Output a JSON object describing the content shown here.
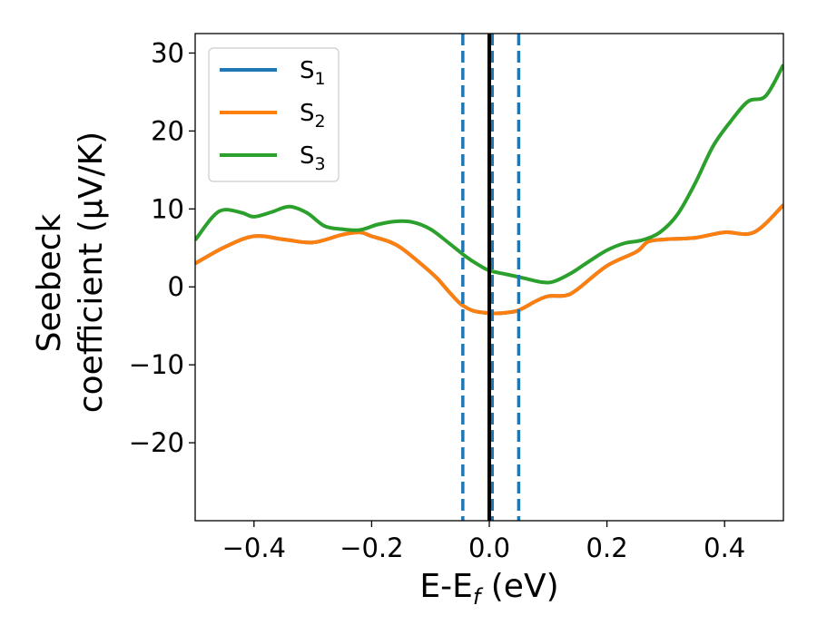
{
  "chart_data": {
    "type": "line",
    "xlabel": {
      "main": "E-E",
      "sub": "f",
      "unit": " (eV)"
    },
    "ylabel": {
      "line1": "Seebeck",
      "line2": "coefficient  (μV/K)"
    },
    "xlim": [
      -0.5,
      0.5
    ],
    "ylim": [
      -30,
      32.5
    ],
    "xticks": [
      -0.4,
      -0.2,
      0.0,
      0.2,
      0.4
    ],
    "xtick_labels": [
      "−0.4",
      "−0.2",
      "0.0",
      "0.2",
      "0.4"
    ],
    "yticks": [
      -20,
      -10,
      0,
      10,
      20,
      30
    ],
    "ytick_labels": [
      "−20",
      "−10",
      "0",
      "10",
      "20",
      "30"
    ],
    "grid": false,
    "legend": "top-left",
    "vlines": [
      {
        "x": -0.045,
        "style": "dashed",
        "color": "#1f77b4"
      },
      {
        "x": 0.005,
        "style": "dashed",
        "color": "#1f77b4"
      },
      {
        "x": 0.05,
        "style": "dashed",
        "color": "#1f77b4"
      },
      {
        "x": 0.0,
        "style": "solid",
        "color": "#000000"
      }
    ],
    "series": [
      {
        "name": "S",
        "sub": "1",
        "color": "#1f77b4",
        "points": [
          [
            -0.5,
            3.0
          ],
          [
            -0.45,
            5.1
          ],
          [
            -0.4,
            6.5
          ],
          [
            -0.35,
            6.1
          ],
          [
            -0.3,
            5.7
          ],
          [
            -0.25,
            6.7
          ],
          [
            -0.22,
            7.0
          ],
          [
            -0.2,
            6.5
          ],
          [
            -0.17,
            5.8
          ],
          [
            -0.15,
            5.0
          ],
          [
            -0.12,
            3.2
          ],
          [
            -0.09,
            1.2
          ],
          [
            -0.07,
            -0.5
          ],
          [
            -0.05,
            -2.1
          ],
          [
            -0.03,
            -3.0
          ],
          [
            -0.01,
            -3.3
          ],
          [
            0.01,
            -3.4
          ],
          [
            0.03,
            -3.3
          ],
          [
            0.05,
            -3.0
          ],
          [
            0.08,
            -1.8
          ],
          [
            0.1,
            -1.2
          ],
          [
            0.13,
            -1.1
          ],
          [
            0.15,
            -0.3
          ],
          [
            0.2,
            2.7
          ],
          [
            0.25,
            4.5
          ],
          [
            0.27,
            5.8
          ],
          [
            0.3,
            6.1
          ],
          [
            0.35,
            6.3
          ],
          [
            0.4,
            7.0
          ],
          [
            0.45,
            7.0
          ],
          [
            0.5,
            10.5
          ]
        ]
      },
      {
        "name": "S",
        "sub": "2",
        "color": "#ff7f0e",
        "points": [
          [
            -0.5,
            3.0
          ],
          [
            -0.45,
            5.1
          ],
          [
            -0.4,
            6.5
          ],
          [
            -0.35,
            6.1
          ],
          [
            -0.3,
            5.7
          ],
          [
            -0.25,
            6.7
          ],
          [
            -0.22,
            7.0
          ],
          [
            -0.2,
            6.5
          ],
          [
            -0.17,
            5.8
          ],
          [
            -0.15,
            5.0
          ],
          [
            -0.12,
            3.2
          ],
          [
            -0.09,
            1.2
          ],
          [
            -0.07,
            -0.5
          ],
          [
            -0.05,
            -2.1
          ],
          [
            -0.03,
            -3.0
          ],
          [
            -0.01,
            -3.3
          ],
          [
            0.01,
            -3.4
          ],
          [
            0.03,
            -3.3
          ],
          [
            0.05,
            -3.0
          ],
          [
            0.08,
            -1.8
          ],
          [
            0.1,
            -1.2
          ],
          [
            0.13,
            -1.1
          ],
          [
            0.15,
            -0.3
          ],
          [
            0.2,
            2.7
          ],
          [
            0.25,
            4.5
          ],
          [
            0.27,
            5.8
          ],
          [
            0.3,
            6.1
          ],
          [
            0.35,
            6.3
          ],
          [
            0.4,
            7.0
          ],
          [
            0.45,
            7.0
          ],
          [
            0.5,
            10.5
          ]
        ]
      },
      {
        "name": "S",
        "sub": "3",
        "color": "#2ca02c",
        "points": [
          [
            -0.5,
            6.0
          ],
          [
            -0.47,
            9.0
          ],
          [
            -0.45,
            9.9
          ],
          [
            -0.42,
            9.5
          ],
          [
            -0.4,
            9.0
          ],
          [
            -0.37,
            9.6
          ],
          [
            -0.34,
            10.3
          ],
          [
            -0.31,
            9.5
          ],
          [
            -0.28,
            7.8
          ],
          [
            -0.25,
            7.4
          ],
          [
            -0.22,
            7.3
          ],
          [
            -0.19,
            8.0
          ],
          [
            -0.16,
            8.4
          ],
          [
            -0.13,
            8.3
          ],
          [
            -0.1,
            7.4
          ],
          [
            -0.07,
            5.7
          ],
          [
            -0.04,
            3.9
          ],
          [
            -0.02,
            2.9
          ],
          [
            0.0,
            2.1
          ],
          [
            0.03,
            1.6
          ],
          [
            0.06,
            1.1
          ],
          [
            0.09,
            0.6
          ],
          [
            0.11,
            0.7
          ],
          [
            0.14,
            1.8
          ],
          [
            0.17,
            3.3
          ],
          [
            0.2,
            4.7
          ],
          [
            0.23,
            5.6
          ],
          [
            0.26,
            6.0
          ],
          [
            0.29,
            7.0
          ],
          [
            0.32,
            9.3
          ],
          [
            0.35,
            13.3
          ],
          [
            0.38,
            18.0
          ],
          [
            0.41,
            21.2
          ],
          [
            0.44,
            23.8
          ],
          [
            0.47,
            24.5
          ],
          [
            0.5,
            28.5
          ]
        ]
      }
    ]
  }
}
